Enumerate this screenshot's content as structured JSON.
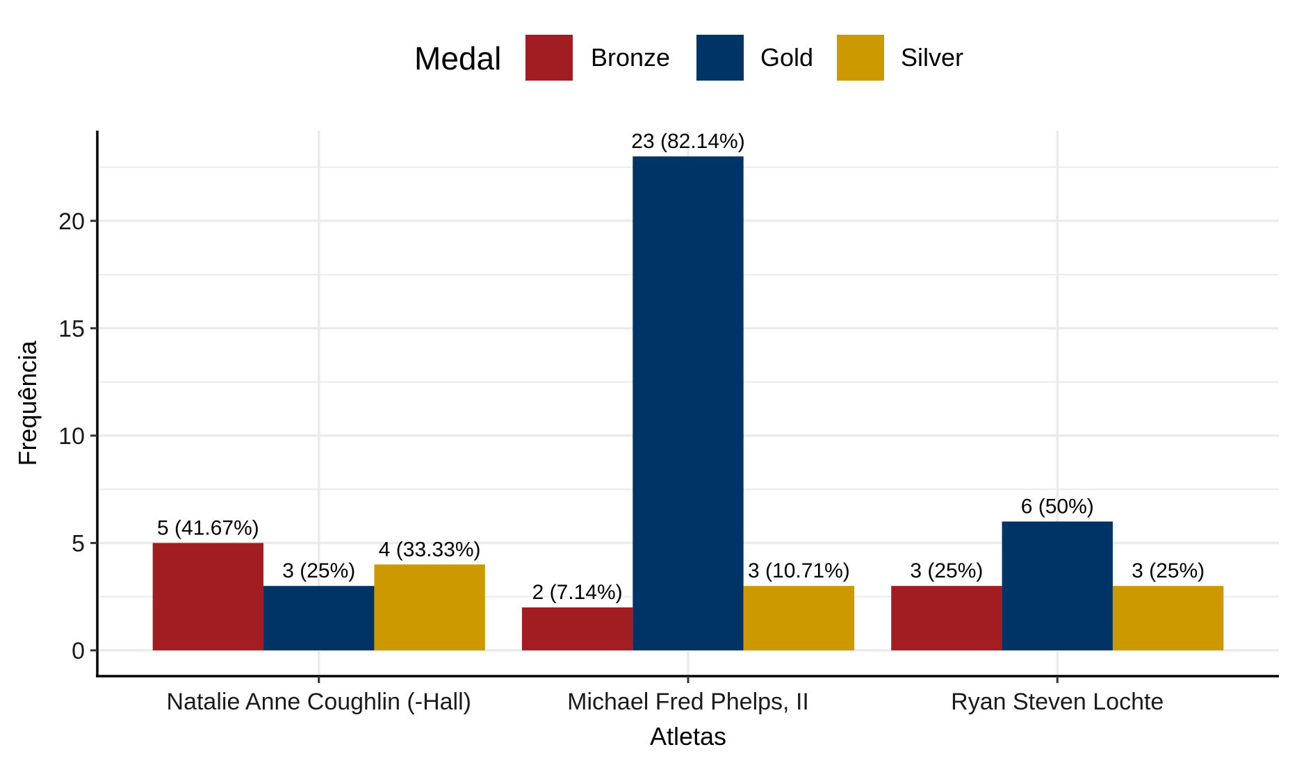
{
  "chart_data": {
    "type": "bar",
    "title": "",
    "xlabel": "Atletas",
    "ylabel": "Frequência",
    "categories": [
      "Natalie Anne Coughlin (-Hall)",
      "Michael Fred Phelps, II",
      "Ryan Steven Lochte"
    ],
    "series": [
      {
        "name": "Bronze",
        "color": "#A11D21",
        "values": [
          5,
          2,
          3
        ],
        "labels": [
          "5 (41.67%)",
          "2 (7.14%)",
          "3 (25%)"
        ]
      },
      {
        "name": "Gold",
        "color": "#003366",
        "values": [
          3,
          23,
          6
        ],
        "labels": [
          "3 (25%)",
          "23 (82.14%)",
          "6 (50%)"
        ]
      },
      {
        "name": "Silver",
        "color": "#CC9900",
        "values": [
          4,
          3,
          3
        ],
        "labels": [
          "4 (33.33%)",
          "3 (10.71%)",
          "3 (25%)"
        ]
      }
    ],
    "yticks": [
      0,
      5,
      10,
      15,
      20
    ],
    "ylim": [
      -1.2,
      24.2
    ],
    "grid": true,
    "legend": {
      "title": "Medal",
      "placement": "top"
    }
  }
}
